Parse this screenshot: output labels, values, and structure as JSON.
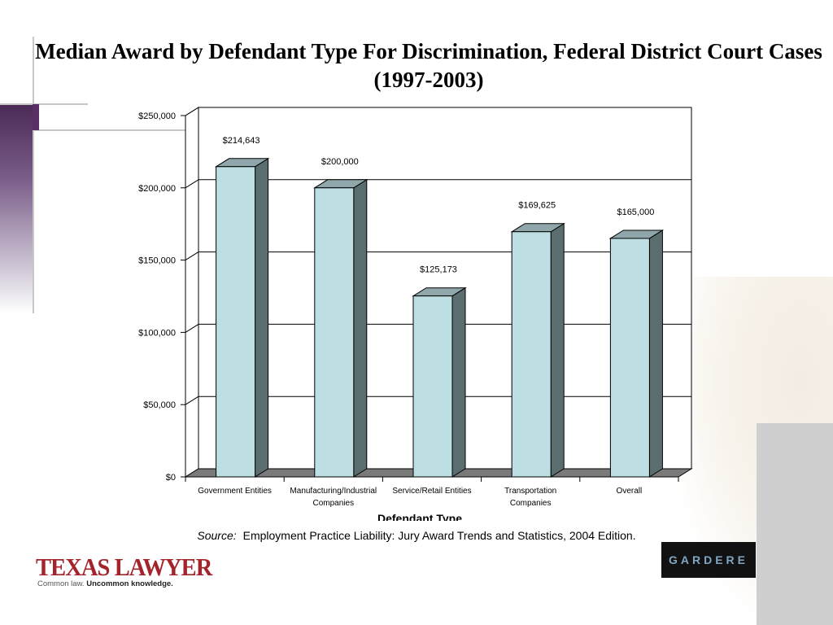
{
  "slide": {
    "title": "Median Award by Defendant Type For Discrimination, Federal District Court Cases (1997-2003)",
    "source_label": "Source:",
    "source_text": "Employment Practice Liability: Jury Award Trends and Statistics, 2004 Edition."
  },
  "logos": {
    "texas_lawyer": "TEXAS LAWYER",
    "texas_lawyer_tagline_plain": "Common law.",
    "texas_lawyer_tagline_bold": "Uncommon knowledge.",
    "gardere": "GARDERE"
  },
  "colors": {
    "bar_front": "#bddfe3",
    "bar_side": "#5a6e70",
    "bar_top": "#8fa7aa",
    "floor": "#7a7a7a",
    "accent_purple": "#5a2e66",
    "texas_lawyer_red": "#a3242a"
  },
  "chart_data": {
    "type": "bar",
    "title": "Median Award by Defendant Type For Discrimination, Federal District Court Cases (1997-2003)",
    "xlabel": "Defendant Type",
    "ylabel": "",
    "categories": [
      [
        "Government Entities"
      ],
      [
        "Manufacturing/Industrial",
        "Companies"
      ],
      [
        "Service/Retail Entities"
      ],
      [
        "Transportation",
        "Companies"
      ],
      [
        "Overall"
      ]
    ],
    "values": [
      214643,
      200000,
      125173,
      169625,
      165000
    ],
    "data_labels": [
      "$214,643",
      "$200,000",
      "$125,173",
      "$169,625",
      "$165,000"
    ],
    "yticks": [
      0,
      50000,
      100000,
      150000,
      200000,
      250000
    ],
    "ytick_labels": [
      "$0",
      "$50,000",
      "$100,000",
      "$150,000",
      "$200,000",
      "$250,000"
    ],
    "ylim": [
      0,
      250000
    ],
    "grid": true,
    "legend": "none",
    "style": "3d-column"
  }
}
